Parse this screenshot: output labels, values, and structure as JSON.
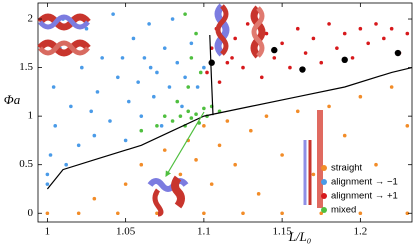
{
  "chart_data": {
    "type": "scatter",
    "x_label": "L/L₀",
    "y_label": "Φa",
    "xlim": [
      0.994,
      1.233
    ],
    "ylim": [
      -0.09,
      2.165
    ],
    "xticks": [
      1,
      1.05,
      1.1,
      1.15,
      1.2
    ],
    "yticks": [
      0,
      0.5,
      1,
      1.5,
      2
    ],
    "legend": "lower right",
    "series": [
      {
        "name": "straight",
        "color": "#f28c28",
        "marker": "dot",
        "x": [
          1.0,
          1.02,
          1.045,
          1.07,
          1.1,
          1.125,
          1.15,
          1.175,
          1.2,
          1.23,
          1.03,
          1.05,
          1.06,
          1.07,
          1.075,
          1.085,
          1.09,
          1.095,
          1.1,
          1.105,
          1.11,
          1.115,
          1.12,
          1.13,
          1.135,
          1.14,
          1.15,
          1.16,
          1.17,
          1.18,
          1.19,
          1.2,
          1.21,
          1.22,
          1.23
        ],
        "values": [
          0,
          0,
          0,
          0,
          0,
          0,
          0,
          0,
          0,
          0,
          0.15,
          0.3,
          0.5,
          0.2,
          0.65,
          0.4,
          0.75,
          0.55,
          0.9,
          0.3,
          0.7,
          0.95,
          0.5,
          0.85,
          0.2,
          1.0,
          0.6,
          1.05,
          0.4,
          1.1,
          0.8,
          1.2,
          0.5,
          1.3,
          0.9
        ]
      },
      {
        "name": "alignment → −1",
        "color": "#4a9be8",
        "marker": "dot",
        "x": [
          1.0,
          1.0,
          1.002,
          1.005,
          1.004,
          1.008,
          1.01,
          1.015,
          1.02,
          1.022,
          1.025,
          1.03,
          1.032,
          1.035,
          1.04,
          1.042,
          1.045,
          1.05,
          1.052,
          1.055,
          1.058,
          1.06,
          1.062,
          1.065,
          1.068,
          1.07,
          1.073,
          1.075,
          1.078,
          1.08,
          1.083,
          1.086,
          1.088,
          1.092,
          1.096,
          1.1,
          1.012,
          1.028,
          1.048,
          1.066
        ],
        "values": [
          0.3,
          0.4,
          0.6,
          0.9,
          1.3,
          1.7,
          2.0,
          1.1,
          0.7,
          1.5,
          1.9,
          0.8,
          1.25,
          1.6,
          0.95,
          2.05,
          1.4,
          0.75,
          1.15,
          1.8,
          1.35,
          1.0,
          1.6,
          1.95,
          1.2,
          1.45,
          0.9,
          1.7,
          1.3,
          2.0,
          1.55,
          1.1,
          1.4,
          1.75,
          1.3,
          1.5,
          0.5,
          1.05,
          1.6,
          1.5
        ]
      },
      {
        "name": "alignment → +1",
        "color": "#d7191c",
        "marker": "dot",
        "x": [
          1.102,
          1.105,
          1.108,
          1.11,
          1.115,
          1.12,
          1.125,
          1.128,
          1.132,
          1.137,
          1.14,
          1.145,
          1.15,
          1.155,
          1.16,
          1.165,
          1.17,
          1.175,
          1.18,
          1.185,
          1.19,
          1.195,
          1.2,
          1.205,
          1.21,
          1.215,
          1.22,
          1.225,
          1.23,
          1.118
        ],
        "values": [
          1.45,
          1.7,
          1.9,
          1.35,
          1.55,
          1.8,
          1.5,
          1.95,
          1.65,
          1.4,
          1.85,
          1.6,
          1.75,
          1.5,
          1.9,
          1.65,
          1.8,
          1.55,
          1.95,
          1.7,
          1.85,
          1.6,
          1.9,
          1.75,
          1.95,
          1.8,
          1.9,
          1.65,
          1.85,
          1.6
        ]
      },
      {
        "name": "mixed",
        "color": "#4fbf3f",
        "marker": "dot",
        "x": [
          1.08,
          1.085,
          1.088,
          1.09,
          1.092,
          1.095,
          1.097,
          1.1,
          1.102,
          1.105,
          1.09,
          1.092,
          1.095,
          1.088,
          1.098,
          1.06,
          1.07,
          1.075,
          1.11,
          1.083
        ],
        "values": [
          0.95,
          1.0,
          0.9,
          1.05,
          0.98,
          1.02,
          0.93,
          1.08,
          1.0,
          1.1,
          1.3,
          1.6,
          1.85,
          2.05,
          1.45,
          0.85,
          0.9,
          1.0,
          1.05,
          1.15
        ]
      },
      {
        "color": "#000000",
        "marker": "big",
        "x": [
          1.105,
          1.145,
          1.163,
          1.19,
          1.224
        ],
        "values": [
          1.55,
          1.68,
          1.48,
          1.58,
          1.65
        ]
      },
      {
        "color": "#000000",
        "marker": "line",
        "x": [
          1.0,
          1.01,
          1.03,
          1.06,
          1.08,
          1.1,
          1.13,
          1.16,
          1.19,
          1.22,
          1.233
        ],
        "values": [
          0.25,
          0.45,
          0.55,
          0.7,
          0.85,
          1.0,
          1.1,
          1.2,
          1.3,
          1.45,
          1.5
        ]
      },
      {
        "color": "#000000",
        "marker": "line",
        "x": [
          1.1038,
          1.1048,
          1.1058
        ],
        "values": [
          1.835,
          1.4,
          1.01
        ]
      }
    ]
  }
}
